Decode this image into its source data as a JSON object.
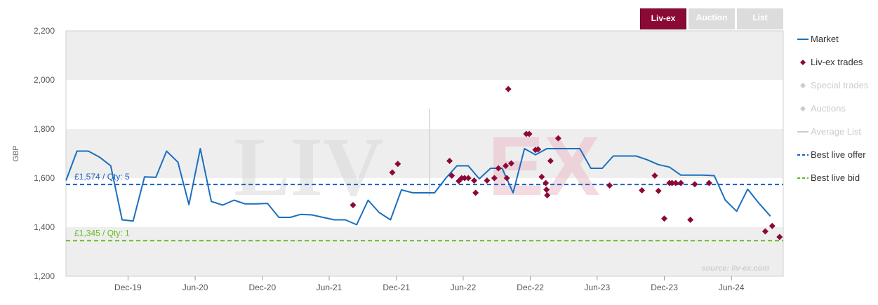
{
  "tabs": [
    {
      "label": "Liv-ex",
      "active": true
    },
    {
      "label": "Auction",
      "active": false
    },
    {
      "label": "List",
      "active": false
    }
  ],
  "watermark": "LIV|EX",
  "source": "source: liv-ex.com",
  "colors": {
    "market": "#1a6fbf",
    "livex_trades": "#8b0a35",
    "disabled": "#cccccc",
    "best_offer": "#1a5fbf",
    "best_bid": "#66bb22",
    "band": "#eeeeee",
    "tab_active": "#8b0a35"
  },
  "chart_data": {
    "type": "line",
    "ylabel": "GBP",
    "ylim": [
      1200,
      2200
    ],
    "yticks": [
      1200,
      1400,
      1600,
      1800,
      2000,
      2200
    ],
    "ytick_labels": [
      "1,200",
      "1,400",
      "1,600",
      "1,800",
      "2,000",
      "2,200"
    ],
    "x_range": [
      "2019-06-15",
      "2024-10-20"
    ],
    "xticks": [
      {
        "date": "2019-12-01",
        "label": "Dec-19"
      },
      {
        "date": "2020-06-01",
        "label": "Jun-20"
      },
      {
        "date": "2020-12-01",
        "label": "Dec-20"
      },
      {
        "date": "2021-06-01",
        "label": "Jun-21"
      },
      {
        "date": "2021-12-01",
        "label": "Dec-21"
      },
      {
        "date": "2022-06-01",
        "label": "Jun-22"
      },
      {
        "date": "2022-12-01",
        "label": "Dec-22"
      },
      {
        "date": "2023-06-01",
        "label": "Jun-23"
      },
      {
        "date": "2023-12-01",
        "label": "Dec-23"
      },
      {
        "date": "2024-06-01",
        "label": "Jun-24"
      }
    ],
    "legend": [
      {
        "key": "market",
        "label": "Market",
        "symbol": "line",
        "enabled": true
      },
      {
        "key": "livex_trades",
        "label": "Liv-ex trades",
        "symbol": "diamond",
        "enabled": true
      },
      {
        "key": "special_trades",
        "label": "Special trades",
        "symbol": "diamond",
        "enabled": false
      },
      {
        "key": "auctions",
        "label": "Auctions",
        "symbol": "diamond",
        "enabled": false
      },
      {
        "key": "average_list",
        "label": "Average List",
        "symbol": "line",
        "enabled": false
      },
      {
        "key": "best_offer",
        "label": "Best live offer",
        "symbol": "dash",
        "enabled": true
      },
      {
        "key": "best_bid",
        "label": "Best live bid",
        "symbol": "dash",
        "enabled": true
      }
    ],
    "legend_position": "right",
    "reference_lines": [
      {
        "key": "best_offer",
        "value": 1574,
        "label": "£1,574 / Qty: 5"
      },
      {
        "key": "best_bid",
        "value": 1345,
        "label": "£1,345 / Qty: 1"
      }
    ],
    "series": [
      {
        "name": "Market",
        "points": [
          [
            "2019-06-15",
            1590
          ],
          [
            "2019-07-15",
            1710
          ],
          [
            "2019-08-15",
            1710
          ],
          [
            "2019-09-15",
            1685
          ],
          [
            "2019-10-15",
            1650
          ],
          [
            "2019-11-15",
            1430
          ],
          [
            "2019-12-15",
            1425
          ],
          [
            "2020-01-15",
            1605
          ],
          [
            "2020-02-15",
            1603
          ],
          [
            "2020-03-15",
            1710
          ],
          [
            "2020-04-15",
            1665
          ],
          [
            "2020-05-15",
            1492
          ],
          [
            "2020-06-15",
            1720
          ],
          [
            "2020-07-15",
            1505
          ],
          [
            "2020-08-15",
            1490
          ],
          [
            "2020-09-15",
            1510
          ],
          [
            "2020-10-15",
            1495
          ],
          [
            "2020-11-15",
            1495
          ],
          [
            "2020-12-15",
            1497
          ],
          [
            "2021-01-15",
            1440
          ],
          [
            "2021-02-15",
            1440
          ],
          [
            "2021-03-15",
            1452
          ],
          [
            "2021-04-15",
            1450
          ],
          [
            "2021-05-15",
            1440
          ],
          [
            "2021-06-15",
            1430
          ],
          [
            "2021-07-15",
            1430
          ],
          [
            "2021-08-15",
            1410
          ],
          [
            "2021-09-15",
            1510
          ],
          [
            "2021-10-15",
            1460
          ],
          [
            "2021-11-15",
            1430
          ],
          [
            "2021-12-15",
            1552
          ],
          [
            "2022-01-15",
            1540
          ],
          [
            "2022-02-15",
            1540
          ],
          [
            "2022-03-15",
            1540
          ],
          [
            "2022-04-15",
            1600
          ],
          [
            "2022-05-15",
            1650
          ],
          [
            "2022-06-15",
            1650
          ],
          [
            "2022-07-15",
            1597
          ],
          [
            "2022-08-15",
            1640
          ],
          [
            "2022-09-15",
            1640
          ],
          [
            "2022-10-15",
            1540
          ],
          [
            "2022-11-15",
            1720
          ],
          [
            "2022-12-15",
            1695
          ],
          [
            "2023-01-15",
            1720
          ],
          [
            "2023-02-15",
            1720
          ],
          [
            "2023-03-15",
            1720
          ],
          [
            "2023-04-15",
            1720
          ],
          [
            "2023-05-15",
            1640
          ],
          [
            "2023-06-15",
            1640
          ],
          [
            "2023-07-15",
            1690
          ],
          [
            "2023-08-15",
            1690
          ],
          [
            "2023-09-15",
            1690
          ],
          [
            "2023-10-15",
            1675
          ],
          [
            "2023-11-15",
            1655
          ],
          [
            "2023-12-15",
            1645
          ],
          [
            "2024-01-15",
            1612
          ],
          [
            "2024-02-15",
            1612
          ],
          [
            "2024-03-15",
            1612
          ],
          [
            "2024-04-15",
            1610
          ],
          [
            "2024-05-15",
            1510
          ],
          [
            "2024-06-15",
            1465
          ],
          [
            "2024-07-15",
            1555
          ],
          [
            "2024-08-15",
            1497
          ],
          [
            "2024-09-15",
            1445
          ]
        ]
      },
      {
        "name": "Liv-ex trades",
        "points": [
          [
            "2021-08-05",
            1490
          ],
          [
            "2021-11-20",
            1623
          ],
          [
            "2021-12-05",
            1658
          ],
          [
            "2022-04-25",
            1670
          ],
          [
            "2022-05-01",
            1610
          ],
          [
            "2022-05-20",
            1588
          ],
          [
            "2022-05-28",
            1600
          ],
          [
            "2022-06-05",
            1600
          ],
          [
            "2022-06-15",
            1600
          ],
          [
            "2022-07-01",
            1590
          ],
          [
            "2022-07-05",
            1540
          ],
          [
            "2022-08-05",
            1590
          ],
          [
            "2022-08-25",
            1600
          ],
          [
            "2022-09-05",
            1640
          ],
          [
            "2022-09-25",
            1650
          ],
          [
            "2022-09-28",
            1600
          ],
          [
            "2022-10-02",
            1963
          ],
          [
            "2022-10-10",
            1660
          ],
          [
            "2022-11-20",
            1780
          ],
          [
            "2022-11-28",
            1780
          ],
          [
            "2022-12-15",
            1715
          ],
          [
            "2022-12-22",
            1717
          ],
          [
            "2023-01-01",
            1605
          ],
          [
            "2023-01-12",
            1580
          ],
          [
            "2023-01-14",
            1553
          ],
          [
            "2023-01-16",
            1530
          ],
          [
            "2023-01-25",
            1670
          ],
          [
            "2023-02-15",
            1762
          ],
          [
            "2023-07-05",
            1570
          ],
          [
            "2023-10-01",
            1550
          ],
          [
            "2023-11-05",
            1610
          ],
          [
            "2023-11-15",
            1548
          ],
          [
            "2023-12-01",
            1435
          ],
          [
            "2023-12-15",
            1580
          ],
          [
            "2023-12-22",
            1580
          ],
          [
            "2024-01-01",
            1580
          ],
          [
            "2024-01-15",
            1580
          ],
          [
            "2024-02-10",
            1430
          ],
          [
            "2024-02-22",
            1575
          ],
          [
            "2024-04-01",
            1580
          ],
          [
            "2024-09-01",
            1383
          ],
          [
            "2024-09-20",
            1405
          ],
          [
            "2024-10-10",
            1360
          ]
        ]
      }
    ]
  }
}
